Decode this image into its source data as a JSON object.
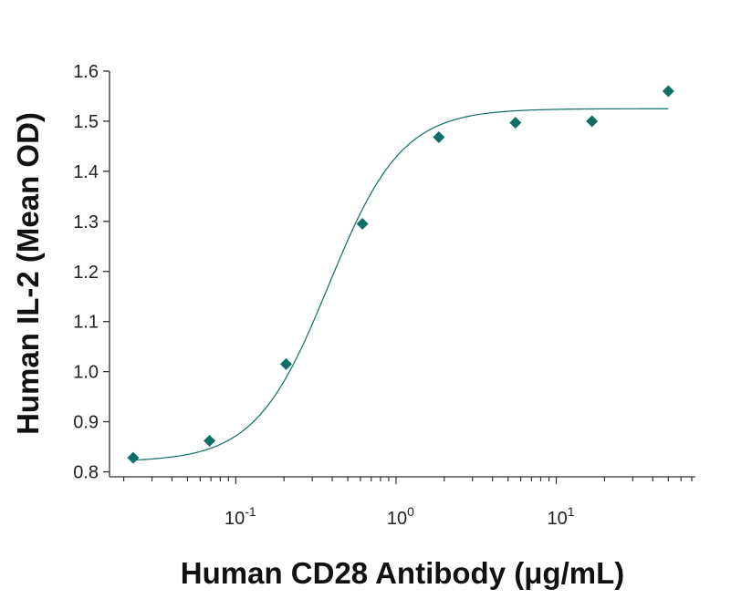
{
  "chart_data": {
    "type": "scatter",
    "title": "",
    "xlabel": "Human CD28 Antibody (μg/mL)",
    "ylabel": "Human IL-2 (Mean OD)",
    "x_scale": "log",
    "xlim": [
      0.0163,
      73.8
    ],
    "ylim": [
      0.79,
      1.6
    ],
    "y_ticks": [
      "0.8",
      "0.9",
      "1.0",
      "1.1",
      "1.2",
      "1.3",
      "1.4",
      "1.5",
      "1.6"
    ],
    "x_ticks": [
      {
        "base": "10",
        "exp": "-1",
        "value": 0.1
      },
      {
        "base": "10",
        "exp": "0",
        "value": 1
      },
      {
        "base": "10",
        "exp": "1",
        "value": 10
      }
    ],
    "grid": false,
    "legend": "none",
    "marker": "diamond",
    "color": "#0f6e66",
    "series": [
      {
        "x": [
          0.0229,
          0.0686,
          0.206,
          0.617,
          1.85,
          5.56,
          16.7,
          50
        ],
        "y": [
          0.828,
          0.862,
          1.015,
          1.295,
          1.468,
          1.497,
          1.5,
          1.56
        ]
      }
    ],
    "fit_curve": {
      "type": "4PL",
      "bottom": 0.82,
      "top": 1.525,
      "ec50": 0.38,
      "hill": 1.9
    }
  }
}
